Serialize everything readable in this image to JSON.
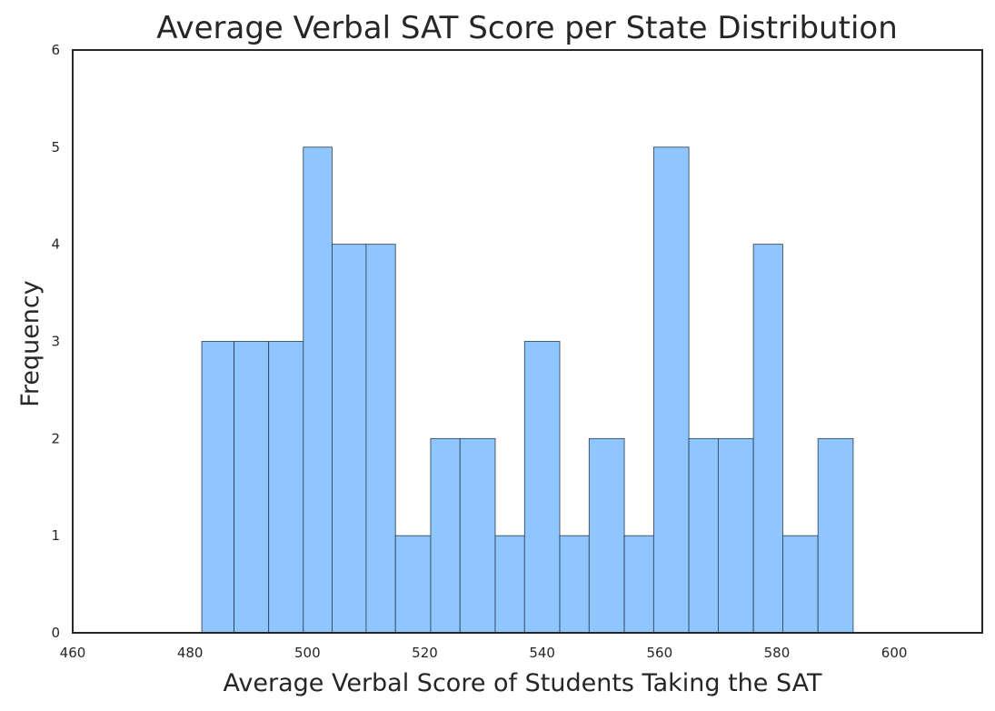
{
  "chart_data": {
    "type": "bar",
    "title": "Average Verbal SAT Score per State Distribution",
    "xlabel": "Average Verbal Score of Students Taking the SAT",
    "ylabel": "Frequency",
    "xlim": [
      460,
      615
    ],
    "ylim": [
      0,
      6
    ],
    "grid": false,
    "bar_color": "#8fc6ff",
    "bin_edges": [
      482,
      487.5,
      493.4,
      499.3,
      504.2,
      510.0,
      515.0,
      521.0,
      526.0,
      532.0,
      537.0,
      543.0,
      548.0,
      554.0,
      559.0,
      565.0,
      570.0,
      576.0,
      581.0,
      587.0,
      593.0
    ],
    "values": [
      3,
      3,
      3,
      5,
      4,
      4,
      1,
      2,
      2,
      1,
      3,
      1,
      2,
      1,
      5,
      2,
      2,
      4,
      1,
      2
    ],
    "x_ticks": [
      460,
      480,
      500,
      520,
      540,
      560,
      580,
      600
    ],
    "y_ticks": [
      0,
      1,
      2,
      3,
      4,
      5,
      6
    ]
  }
}
